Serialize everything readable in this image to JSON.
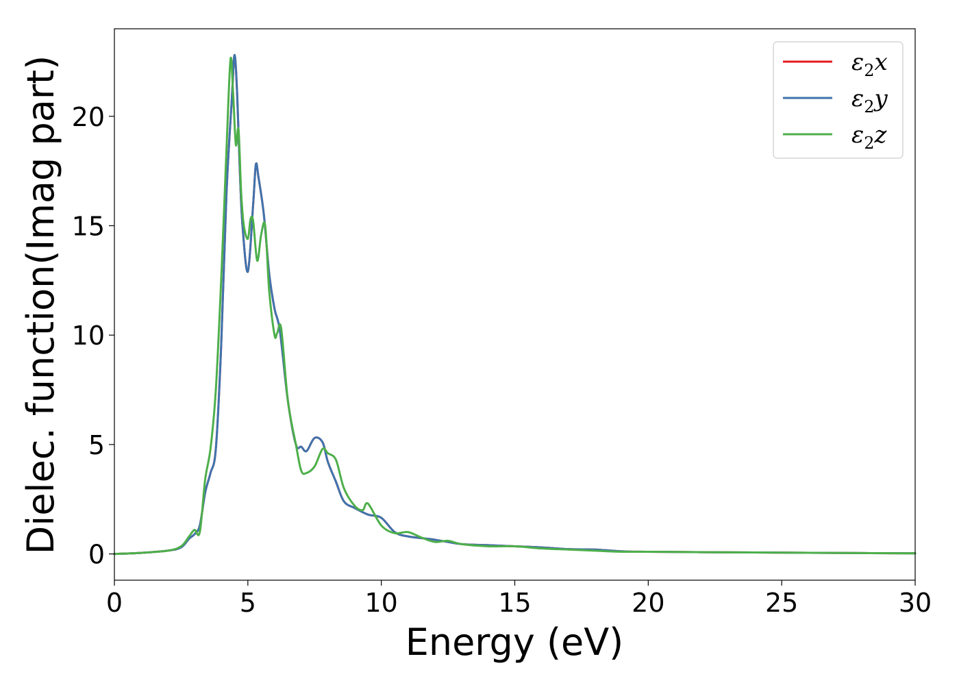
{
  "chart_data": {
    "type": "line",
    "title": "",
    "xlabel": "Energy (eV)",
    "ylabel": "Dielec. function(Imag part)",
    "xlim": [
      0,
      30
    ],
    "ylim": [
      -1.2,
      24.0
    ],
    "x_ticks": [
      0,
      5,
      10,
      15,
      20,
      25,
      30
    ],
    "y_ticks": [
      0,
      5,
      10,
      15,
      20
    ],
    "grid": false,
    "legend_position": "top-right",
    "series": [
      {
        "name": "ε₂x",
        "legend_base": "ε",
        "legend_sub": "2",
        "legend_axis": "x",
        "color": "#e41a1c",
        "x": [
          0,
          1,
          2,
          2.5,
          2.8,
          3.0,
          3.2,
          3.4,
          3.6,
          3.8,
          4.0,
          4.2,
          4.4,
          4.5,
          4.6,
          4.7,
          4.8,
          5.0,
          5.2,
          5.3,
          5.4,
          5.6,
          5.8,
          6.0,
          6.2,
          6.5,
          6.8,
          7.0,
          7.2,
          7.5,
          7.8,
          8.0,
          8.3,
          8.6,
          9.0,
          9.5,
          10.0,
          10.5,
          11.0,
          12.0,
          13.0,
          14.0,
          15.0,
          16.0,
          17.0,
          18.0,
          19.0,
          20.0,
          22.0,
          25.0,
          28.0,
          30.0
        ],
        "values": [
          0.0,
          0.05,
          0.15,
          0.3,
          0.7,
          0.9,
          1.3,
          2.8,
          3.7,
          4.8,
          9.5,
          16.5,
          20.8,
          22.8,
          21.0,
          17.5,
          15.0,
          12.9,
          16.0,
          17.8,
          17.2,
          15.5,
          12.8,
          11.2,
          10.2,
          7.0,
          5.0,
          4.9,
          4.7,
          5.3,
          5.1,
          4.2,
          3.3,
          2.4,
          2.1,
          1.8,
          1.65,
          1.0,
          0.8,
          0.65,
          0.45,
          0.4,
          0.35,
          0.3,
          0.22,
          0.2,
          0.12,
          0.1,
          0.08,
          0.06,
          0.04,
          0.03
        ]
      },
      {
        "name": "ε₂y",
        "legend_base": "ε",
        "legend_sub": "2",
        "legend_axis": "y",
        "color": "#3f73ad",
        "x": [
          0,
          1,
          2,
          2.5,
          2.8,
          3.0,
          3.2,
          3.4,
          3.6,
          3.8,
          4.0,
          4.2,
          4.4,
          4.5,
          4.6,
          4.7,
          4.8,
          5.0,
          5.2,
          5.3,
          5.4,
          5.6,
          5.8,
          6.0,
          6.2,
          6.5,
          6.8,
          7.0,
          7.2,
          7.5,
          7.8,
          8.0,
          8.3,
          8.6,
          9.0,
          9.5,
          10.0,
          10.5,
          11.0,
          12.0,
          13.0,
          14.0,
          15.0,
          16.0,
          17.0,
          18.0,
          19.0,
          20.0,
          22.0,
          25.0,
          28.0,
          30.0
        ],
        "values": [
          0.0,
          0.05,
          0.15,
          0.3,
          0.7,
          0.9,
          1.3,
          2.8,
          3.7,
          4.8,
          9.5,
          16.5,
          20.8,
          22.8,
          21.0,
          17.5,
          15.0,
          12.9,
          16.0,
          17.8,
          17.2,
          15.5,
          12.8,
          11.2,
          10.2,
          7.0,
          5.0,
          4.9,
          4.7,
          5.3,
          5.1,
          4.2,
          3.3,
          2.4,
          2.1,
          1.8,
          1.65,
          1.0,
          0.8,
          0.65,
          0.45,
          0.4,
          0.35,
          0.3,
          0.22,
          0.2,
          0.12,
          0.1,
          0.08,
          0.06,
          0.04,
          0.03
        ]
      },
      {
        "name": "ε₂z",
        "legend_base": "ε",
        "legend_sub": "2",
        "legend_axis": "z",
        "color": "#4daf4a",
        "x": [
          0,
          1,
          2,
          2.5,
          2.8,
          3.0,
          3.2,
          3.4,
          3.6,
          3.8,
          4.0,
          4.2,
          4.35,
          4.45,
          4.55,
          4.65,
          4.75,
          4.85,
          5.0,
          5.1,
          5.2,
          5.35,
          5.5,
          5.65,
          5.8,
          6.0,
          6.1,
          6.25,
          6.5,
          6.8,
          7.0,
          7.2,
          7.5,
          7.8,
          8.0,
          8.3,
          8.6,
          9.0,
          9.3,
          9.5,
          10.0,
          10.5,
          11.0,
          11.5,
          12.0,
          12.5,
          13.0,
          14.0,
          15.0,
          16.0,
          17.0,
          18.0,
          19.0,
          20.0,
          22.0,
          25.0,
          28.0,
          30.0
        ],
        "values": [
          0.0,
          0.05,
          0.15,
          0.35,
          0.8,
          1.1,
          1.0,
          3.4,
          4.8,
          7.5,
          12.5,
          18.5,
          22.6,
          21.0,
          18.7,
          19.4,
          16.5,
          15.0,
          14.4,
          15.3,
          15.2,
          13.4,
          14.6,
          15.0,
          12.0,
          10.0,
          10.1,
          10.3,
          7.0,
          5.0,
          3.8,
          3.7,
          4.0,
          4.8,
          4.6,
          4.3,
          3.0,
          2.2,
          2.0,
          2.3,
          1.3,
          0.95,
          1.0,
          0.75,
          0.55,
          0.6,
          0.45,
          0.35,
          0.35,
          0.25,
          0.2,
          0.15,
          0.1,
          0.1,
          0.08,
          0.06,
          0.04,
          0.03
        ]
      }
    ]
  }
}
